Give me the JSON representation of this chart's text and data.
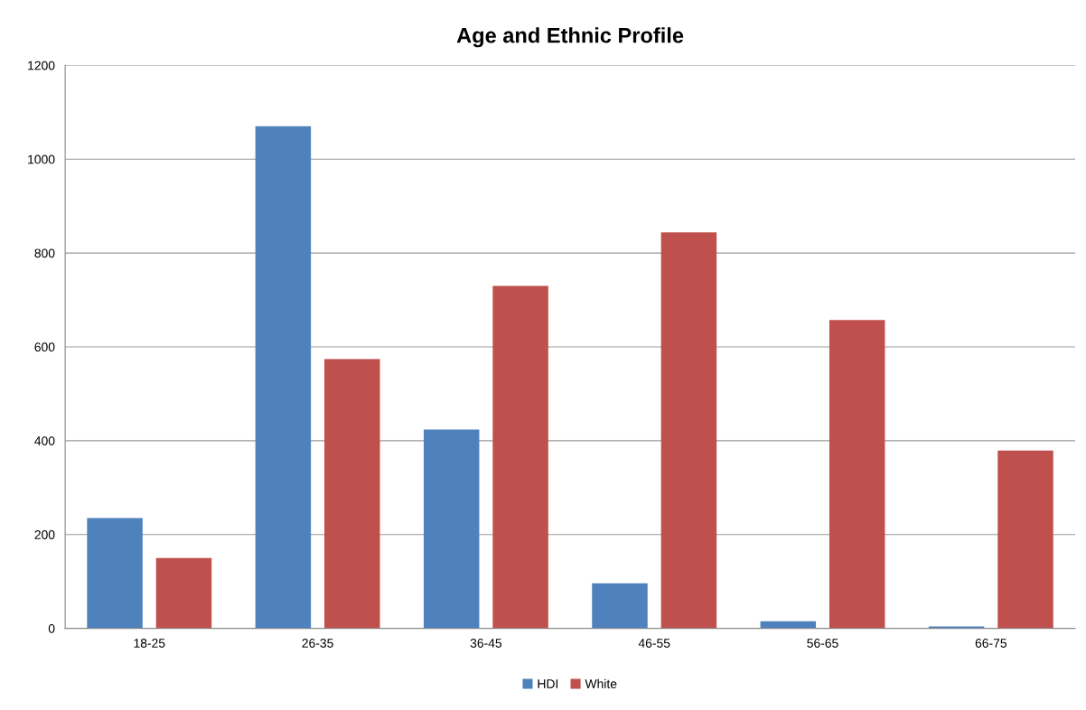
{
  "chart_data": {
    "type": "bar",
    "title": "Age and Ethnic Profile",
    "categories": [
      "18-25",
      "26-35",
      "36-45",
      "46-55",
      "56-65",
      "66-75"
    ],
    "series": [
      {
        "name": "HDI",
        "color": "#4f81bd",
        "values": [
          235,
          1070,
          424,
          96,
          15,
          4
        ]
      },
      {
        "name": "White",
        "color": "#c0504d",
        "values": [
          150,
          574,
          730,
          844,
          657,
          379
        ]
      }
    ],
    "ylim": [
      0,
      1200
    ],
    "yticks": [
      0,
      200,
      400,
      600,
      800,
      1000,
      1200
    ],
    "grid": "y",
    "legend": "bottom"
  }
}
